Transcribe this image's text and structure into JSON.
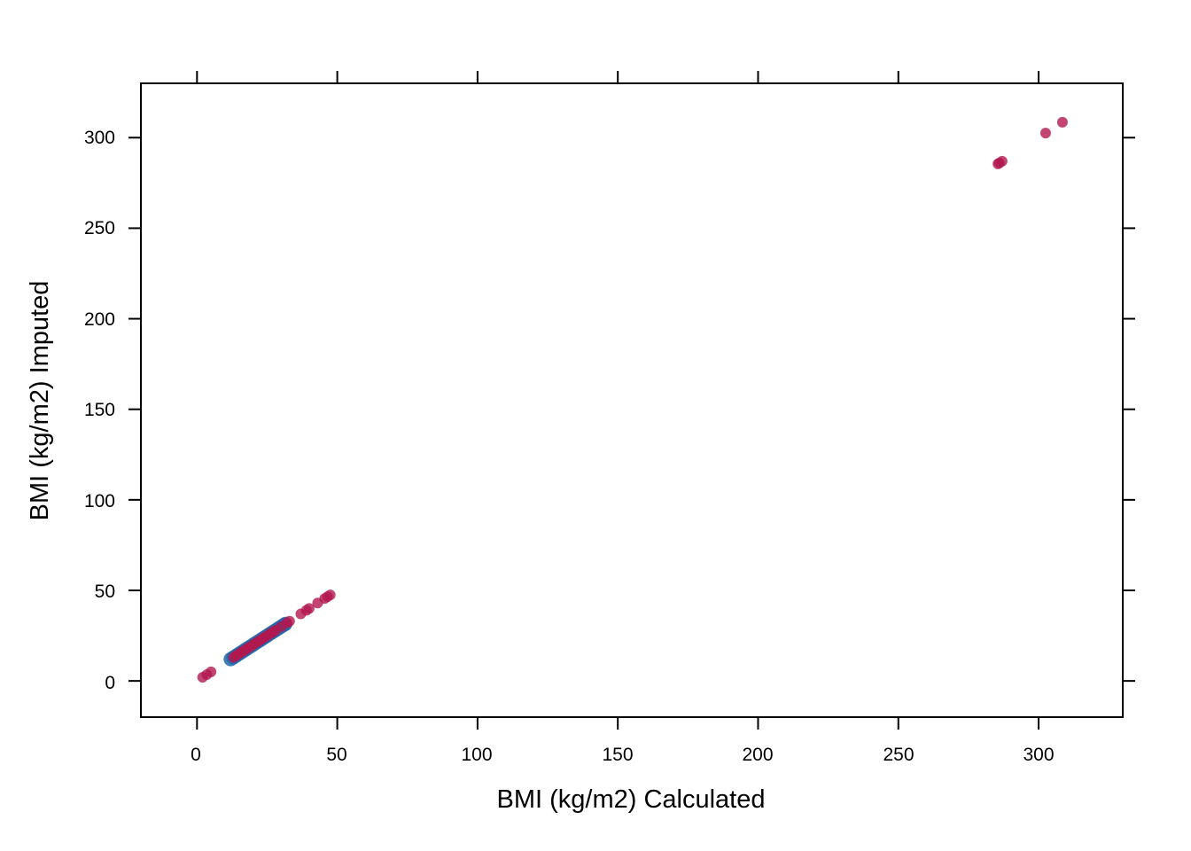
{
  "chart_data": {
    "type": "scatter",
    "title": "",
    "xlabel": "BMI (kg/m2) Calculated",
    "ylabel": "BMI (kg/m2) Imputed",
    "xlim": [
      -20,
      330
    ],
    "ylim": [
      -20,
      330
    ],
    "xticks": [
      0,
      50,
      100,
      150,
      200,
      250,
      300
    ],
    "yticks": [
      0,
      50,
      100,
      150,
      200,
      250,
      300
    ],
    "grid": false,
    "legend": "none",
    "series": [
      {
        "color": "#2166ac",
        "opacity": 0.85,
        "x": [
          12,
          13,
          14,
          15,
          16,
          17,
          18,
          19,
          20,
          21,
          22,
          23,
          24,
          25,
          26,
          27,
          28,
          29,
          30,
          31,
          31.5
        ],
        "y": [
          12,
          13,
          14,
          15,
          16,
          17,
          18,
          19,
          20,
          21,
          22,
          23,
          24,
          25,
          26,
          27,
          28,
          29,
          30,
          31,
          31.5
        ]
      },
      {
        "color": "#b2184f",
        "opacity": 0.8,
        "x": [
          2,
          3.5,
          5,
          13,
          14,
          15,
          16,
          17,
          18,
          19,
          20,
          21,
          22,
          23,
          24,
          25,
          26,
          27,
          28,
          30,
          32,
          33,
          37,
          39,
          40,
          43,
          45.5,
          46.5,
          47.5,
          285.5,
          286,
          287,
          302.5,
          308.5
        ],
        "y": [
          2,
          3.5,
          5,
          13,
          14,
          15,
          16,
          17,
          18,
          19,
          20,
          21,
          22,
          23,
          24,
          25,
          26,
          27,
          28,
          30,
          32,
          33,
          37,
          39,
          40,
          43,
          45.5,
          46.5,
          47.5,
          285.5,
          286,
          287,
          302.5,
          308.5
        ]
      }
    ]
  }
}
